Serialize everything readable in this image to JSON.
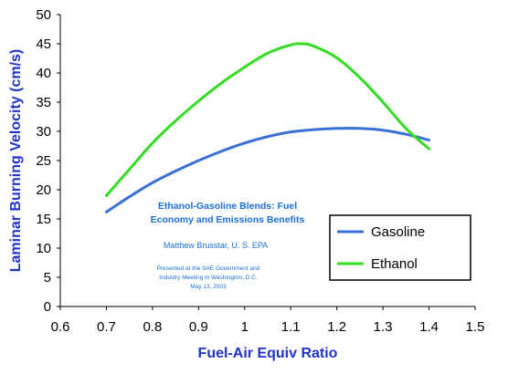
{
  "chart_data": {
    "type": "line",
    "title": "",
    "xlabel": "Fuel-Air Equiv Ratio",
    "ylabel": "Laminar Burning Velocity (cm/s)",
    "xlim": [
      0.6,
      1.5
    ],
    "ylim": [
      0,
      50
    ],
    "x_ticks": [
      "0.6",
      "0.7",
      "0.8",
      "0.9",
      "1",
      "1.1",
      "1.2",
      "1.3",
      "1.4",
      "1.5"
    ],
    "y_ticks": [
      "0",
      "5",
      "10",
      "15",
      "20",
      "25",
      "30",
      "35",
      "40",
      "45",
      "50"
    ],
    "grid": false,
    "legend_position": "right",
    "series": [
      {
        "name": "Gasoline",
        "color": "#3b6fd8",
        "x": [
          0.7,
          0.75,
          0.8,
          0.85,
          0.9,
          0.95,
          1.0,
          1.05,
          1.1,
          1.15,
          1.2,
          1.25,
          1.3,
          1.35,
          1.4
        ],
        "y": [
          16.2,
          18.8,
          21.2,
          23.2,
          25.0,
          26.6,
          28.0,
          29.1,
          29.9,
          30.3,
          30.5,
          30.5,
          30.2,
          29.5,
          28.5
        ]
      },
      {
        "name": "Ethanol",
        "color": "#33dd22",
        "x": [
          0.7,
          0.75,
          0.8,
          0.85,
          0.9,
          0.95,
          1.0,
          1.05,
          1.1,
          1.125,
          1.15,
          1.2,
          1.25,
          1.3,
          1.35,
          1.4
        ],
        "y": [
          19.0,
          23.5,
          28.0,
          31.8,
          35.2,
          38.3,
          41.0,
          43.4,
          44.8,
          45.0,
          44.6,
          42.6,
          39.2,
          35.0,
          30.5,
          27.0
        ]
      }
    ],
    "annotation": {
      "title_lines": [
        "Ethanol-Gasoline Blends:  Fuel",
        "Economy and Emissions Benefits"
      ],
      "author": "Matthew Brusstar, U. S. EPA",
      "note_lines": [
        "Presented at the SAE Government and",
        "Industry Meeting in Washington, D.C.",
        "May 13, 2003"
      ]
    }
  }
}
